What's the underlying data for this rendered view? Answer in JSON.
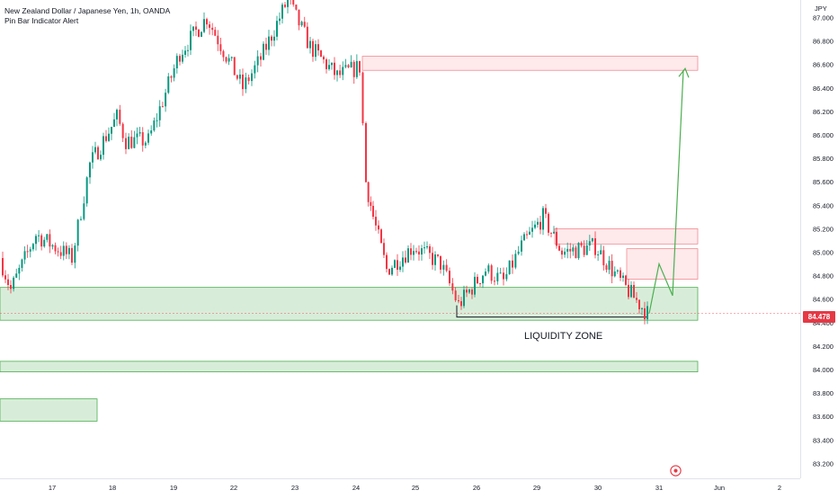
{
  "header": {
    "title": "New Zealand Dollar / Japanese Yen, 1h, OANDA",
    "indicator": "Pin Bar Indicator Alert"
  },
  "axis": {
    "currency": "JPY",
    "price_labels": [
      "87.000",
      "86.800",
      "86.600",
      "86.400",
      "86.200",
      "86.000",
      "85.800",
      "85.600",
      "85.400",
      "85.200",
      "85.000",
      "84.800",
      "84.600",
      "84.400",
      "84.200",
      "84.000",
      "83.800",
      "83.600",
      "83.400",
      "83.200"
    ],
    "time_labels": [
      "17",
      "18",
      "19",
      "22",
      "23",
      "24",
      "25",
      "26",
      "29",
      "30",
      "31",
      "Jun",
      "2"
    ]
  },
  "last_price": "84.478",
  "annotation": {
    "liquidity_zone": "LIQUIDITY ZONE"
  },
  "colors": {
    "up": "#089981",
    "down": "#f23645",
    "demand_zone": "#c8e6c9",
    "supply_zone": "#fce4e4",
    "projection": "#4caf50"
  },
  "icons": {
    "replay": "target-icon"
  },
  "chart_data": {
    "type": "candlestick",
    "title": "New Zealand Dollar / Japanese Yen, 1h, OANDA",
    "xlabel": "",
    "ylabel": "",
    "ylim": [
      83.2,
      87.0
    ],
    "grid": false,
    "x_ticks": [
      "17",
      "18",
      "19",
      "22",
      "23",
      "24",
      "25",
      "26",
      "29",
      "30",
      "31",
      "Jun",
      "2"
    ],
    "y_ticks": [
      87.0,
      86.8,
      86.6,
      86.4,
      86.2,
      86.0,
      85.8,
      85.6,
      85.4,
      85.2,
      85.0,
      84.8,
      84.6,
      84.4,
      84.2,
      84.0,
      83.8,
      83.6,
      83.4,
      83.2
    ],
    "last_price": 84.478,
    "close_path": [
      {
        "x": "17",
        "y": 84.95
      },
      {
        "x": "17",
        "y": 84.68
      },
      {
        "x": "17",
        "y": 85.15
      },
      {
        "x": "18",
        "y": 84.95
      },
      {
        "x": "18",
        "y": 85.75
      },
      {
        "x": "18",
        "y": 86.15
      },
      {
        "x": "18",
        "y": 85.95
      },
      {
        "x": "19",
        "y": 85.95
      },
      {
        "x": "19",
        "y": 86.7
      },
      {
        "x": "22",
        "y": 87.0
      },
      {
        "x": "22",
        "y": 86.4
      },
      {
        "x": "22",
        "y": 86.65
      },
      {
        "x": "23",
        "y": 87.15
      },
      {
        "x": "23",
        "y": 86.75
      },
      {
        "x": "23",
        "y": 86.5
      },
      {
        "x": "24",
        "y": 86.58
      },
      {
        "x": "24",
        "y": 85.6
      },
      {
        "x": "24",
        "y": 85.3
      },
      {
        "x": "24",
        "y": 84.85
      },
      {
        "x": "25",
        "y": 85.05
      },
      {
        "x": "25",
        "y": 84.9
      },
      {
        "x": "26",
        "y": 84.55
      },
      {
        "x": "26",
        "y": 84.85
      },
      {
        "x": "26",
        "y": 84.75
      },
      {
        "x": "29",
        "y": 85.05
      },
      {
        "x": "29",
        "y": 85.3
      },
      {
        "x": "29",
        "y": 85.0
      },
      {
        "x": "30",
        "y": 85.05
      },
      {
        "x": "30",
        "y": 84.75
      },
      {
        "x": "31",
        "y": 84.478
      }
    ],
    "zones": [
      {
        "kind": "supply",
        "price_range": [
          86.55,
          86.67
        ]
      },
      {
        "kind": "supply",
        "price_range": [
          85.07,
          85.2
        ]
      },
      {
        "kind": "supply",
        "price_range": [
          84.77,
          85.03
        ]
      },
      {
        "kind": "demand",
        "label": "LIQUIDITY ZONE",
        "price_range": [
          84.42,
          84.7
        ]
      },
      {
        "kind": "demand",
        "price_range": [
          83.98,
          84.07
        ]
      },
      {
        "kind": "demand",
        "price_range": [
          83.56,
          83.75
        ]
      }
    ],
    "projection": [
      {
        "x": "31",
        "y": 84.478
      },
      {
        "x": "31",
        "y": 84.9
      },
      {
        "x": "31",
        "y": 84.63
      },
      {
        "x": "31",
        "y": 86.55
      }
    ]
  }
}
